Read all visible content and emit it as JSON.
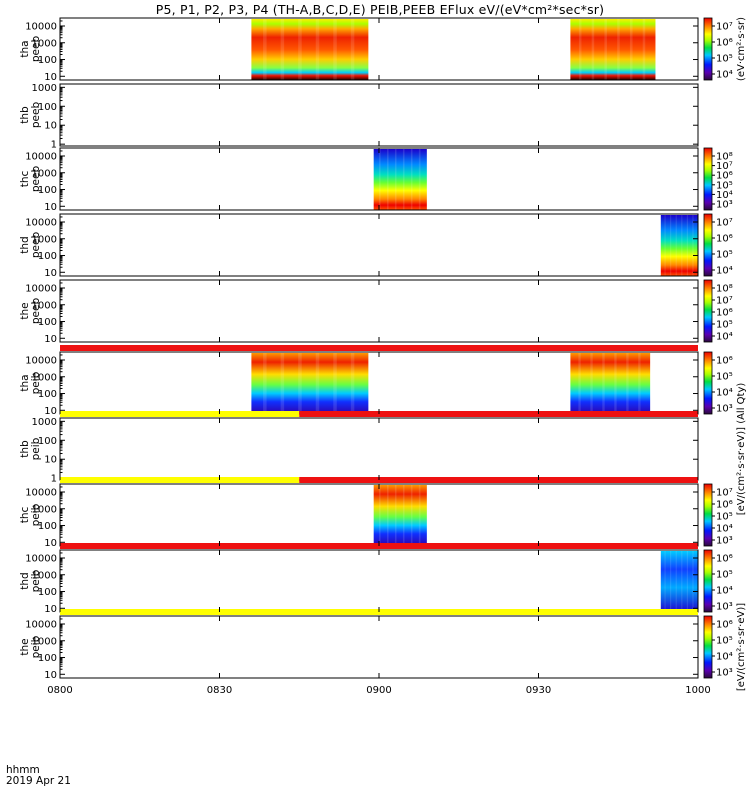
{
  "title": "P5, P1, P2, P3, P4 (TH-A,B,C,D,E) PEIB,PEEB EFlux eV/(eV*cm²*sec*sr)",
  "x_axis": {
    "tick_labels": [
      "0800",
      "0830",
      "0900",
      "0930",
      "1000"
    ],
    "footer_line1": "hhmm",
    "footer_line2": "2019 Apr 21"
  },
  "colors": {
    "flag_red": "#ee1111",
    "flag_yellow": "#ffff00",
    "frame": "#000000"
  },
  "chart_data": {
    "type": "heatmap",
    "x_range_minutes": [
      0,
      120
    ],
    "x_ticks_minutes": [
      0,
      30,
      60,
      90,
      120
    ],
    "panels": [
      {
        "id": "tha-peeb",
        "ylabel": [
          "tha",
          "peeb"
        ],
        "scale": "log",
        "ylim": [
          6,
          30000
        ],
        "ytick_labels": [
          "10000",
          "1000",
          "100",
          "10"
        ],
        "ytick_values": [
          10000,
          1000,
          100,
          10
        ],
        "colorbar_labels": [
          "10⁷",
          "10⁶",
          "10⁵",
          "10⁴"
        ],
        "colorbar_side_label": "(eV·cm²·s·sr)",
        "blocks": [
          {
            "start_min": 36,
            "end_min": 58,
            "style": "peeb_high"
          },
          {
            "start_min": 96,
            "end_min": 112,
            "style": "peeb_high"
          }
        ]
      },
      {
        "id": "thb-peeb",
        "ylabel": [
          "thb",
          "peeb"
        ],
        "scale": "log",
        "ylim": [
          0.8,
          1500
        ],
        "ytick_labels": [
          "1000",
          "100",
          "10",
          "1"
        ],
        "ytick_values": [
          1000,
          100,
          10,
          1
        ],
        "colorbar_labels": [],
        "colorbar_side_label": "",
        "blocks": []
      },
      {
        "id": "thc-peeb",
        "ylabel": [
          "thc",
          "peeb"
        ],
        "scale": "log",
        "ylim": [
          6,
          30000
        ],
        "ytick_labels": [
          "10000",
          "1000",
          "100",
          "10"
        ],
        "ytick_values": [
          10000,
          1000,
          100,
          10
        ],
        "colorbar_labels": [
          "10⁸",
          "10⁷",
          "10⁶",
          "10⁵",
          "10⁴",
          "10³"
        ],
        "colorbar_side_label": "",
        "blocks": [
          {
            "start_min": 59,
            "end_min": 69,
            "style": "peeb_low"
          }
        ]
      },
      {
        "id": "thd-peeb",
        "ylabel": [
          "thd",
          "peeb"
        ],
        "scale": "log",
        "ylim": [
          6,
          30000
        ],
        "ytick_labels": [
          "10000",
          "1000",
          "100",
          "10"
        ],
        "ytick_values": [
          10000,
          1000,
          100,
          10
        ],
        "colorbar_labels": [
          "10⁷",
          "10⁶",
          "10⁵",
          "10⁴"
        ],
        "colorbar_side_label": "",
        "blocks": [
          {
            "start_min": 113,
            "end_min": 120,
            "style": "peeb_low"
          }
        ]
      },
      {
        "id": "the-peeb",
        "ylabel": [
          "the",
          "peeb"
        ],
        "scale": "log",
        "ylim": [
          6,
          30000
        ],
        "ytick_labels": [
          "10000",
          "1000",
          "100",
          "10"
        ],
        "ytick_values": [
          10000,
          1000,
          100,
          10
        ],
        "colorbar_labels": [
          "10⁸",
          "10⁷",
          "10⁶",
          "10⁵",
          "10⁴"
        ],
        "colorbar_side_label": "",
        "blocks": []
      },
      {
        "id": "tha-peib",
        "ylabel": [
          "tha",
          "peib"
        ],
        "scale": "log",
        "ylim": [
          6,
          30000
        ],
        "ytick_labels": [
          "10000",
          "1000",
          "100",
          "10"
        ],
        "ytick_values": [
          10000,
          1000,
          100,
          10
        ],
        "colorbar_labels": [
          "10⁶",
          "10⁵",
          "10⁴",
          "10³"
        ],
        "colorbar_side_label": "",
        "blocks": [
          {
            "start_min": 36,
            "end_min": 58,
            "style": "peib"
          },
          {
            "start_min": 96,
            "end_min": 111,
            "style": "peib"
          }
        ]
      },
      {
        "id": "thb-peib",
        "ylabel": [
          "thb",
          "peib"
        ],
        "scale": "log",
        "ylim": [
          0.8,
          1500
        ],
        "ytick_labels": [
          "1000",
          "100",
          "10",
          "1"
        ],
        "ytick_values": [
          1000,
          100,
          10,
          1
        ],
        "colorbar_labels": [],
        "colorbar_side_label": "[eV/(cm²·s·sr·eV)] (All Qty)",
        "blocks": []
      },
      {
        "id": "thc-peib",
        "ylabel": [
          "thc",
          "peib"
        ],
        "scale": "log",
        "ylim": [
          6,
          30000
        ],
        "ytick_labels": [
          "10000",
          "1000",
          "100",
          "10"
        ],
        "ytick_values": [
          10000,
          1000,
          100,
          10
        ],
        "colorbar_labels": [
          "10⁷",
          "10⁶",
          "10⁵",
          "10⁴",
          "10³"
        ],
        "colorbar_side_label": "",
        "blocks": [
          {
            "start_min": 59,
            "end_min": 69,
            "style": "peib"
          }
        ]
      },
      {
        "id": "thd-peib",
        "ylabel": [
          "thd",
          "peib"
        ],
        "scale": "log",
        "ylim": [
          6,
          30000
        ],
        "ytick_labels": [
          "10000",
          "1000",
          "100",
          "10"
        ],
        "ytick_values": [
          10000,
          1000,
          100,
          10
        ],
        "colorbar_labels": [
          "10⁶",
          "10⁵",
          "10⁴",
          "10³"
        ],
        "colorbar_side_label": "",
        "blocks": [
          {
            "start_min": 113,
            "end_min": 120,
            "style": "peib_cold"
          }
        ]
      },
      {
        "id": "the-peib",
        "ylabel": [
          "the",
          "peib"
        ],
        "scale": "log",
        "ylim": [
          6,
          30000
        ],
        "ytick_labels": [
          "10000",
          "1000",
          "100",
          "10"
        ],
        "ytick_values": [
          10000,
          1000,
          100,
          10
        ],
        "colorbar_labels": [
          "10⁶",
          "10⁵",
          "10⁴",
          "10³"
        ],
        "colorbar_side_label": "[eV/(cm²·s·sr·eV)]",
        "blocks": []
      }
    ],
    "flag_bars": [
      {
        "after_panel": 4,
        "segments": [
          {
            "start_min": 0,
            "end_min": 120,
            "color": "red"
          }
        ]
      },
      {
        "after_panel": 5,
        "segments": [
          {
            "start_min": 0,
            "end_min": 45,
            "color": "yellow"
          },
          {
            "start_min": 45,
            "end_min": 120,
            "color": "red"
          }
        ]
      },
      {
        "after_panel": 6,
        "segments": [
          {
            "start_min": 0,
            "end_min": 45,
            "color": "yellow"
          },
          {
            "start_min": 45,
            "end_min": 120,
            "color": "red"
          }
        ]
      },
      {
        "after_panel": 7,
        "segments": [
          {
            "start_min": 0,
            "end_min": 120,
            "color": "red"
          }
        ]
      },
      {
        "after_panel": 8,
        "segments": [
          {
            "start_min": 0,
            "end_min": 120,
            "color": "yellow"
          }
        ]
      }
    ]
  }
}
